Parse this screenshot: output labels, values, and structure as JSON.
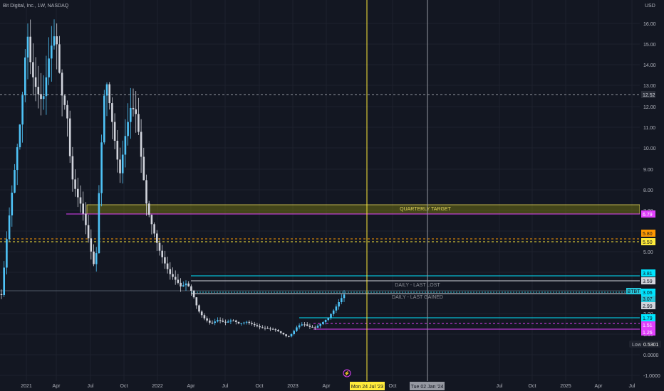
{
  "header": {
    "symbol_title": "Bit Digital, Inc., 1W, NASDAQ"
  },
  "axis": {
    "currency": "USD",
    "y_ticks": [
      "16.00",
      "15.00",
      "14.00",
      "13.00",
      "12.00",
      "11.00",
      "10.00",
      "9.00",
      "8.00",
      "7.00",
      "6.00",
      "5.00",
      "4.00",
      "2.00",
      "1.00",
      "0.0000",
      "-1.0000"
    ],
    "x_ticks": [
      "2021",
      "Apr",
      "Jul",
      "Oct",
      "2022",
      "Apr",
      "Jul",
      "Oct",
      "2023",
      "Apr",
      "Oct",
      "Jul",
      "Oct",
      "2025",
      "Apr",
      "Jul"
    ]
  },
  "price_labels": [
    {
      "text": "12.52",
      "bg": "#2a2e39",
      "fg": "#d1d4dc"
    },
    {
      "text": "6.79",
      "bg": "#e040fb",
      "fg": "#ffffff"
    },
    {
      "text": "5.80",
      "bg": "#ff9800",
      "fg": "#131722"
    },
    {
      "text": "5.50",
      "bg": "#ffeb3b",
      "fg": "#131722"
    },
    {
      "text": "3.81",
      "bg": "#00e5ff",
      "fg": "#131722"
    },
    {
      "text": "3.59",
      "bg": "#d1d4dc",
      "fg": "#131722"
    },
    {
      "text": "3.07",
      "bg": "#26c6da",
      "fg": "#131722"
    },
    {
      "text": "3.06",
      "bg": "#00e5ff",
      "fg": "#131722"
    },
    {
      "text": "2.99",
      "bg": "#d1d4dc",
      "fg": "#131722"
    },
    {
      "text": "1.79",
      "bg": "#00e5ff",
      "fg": "#131722"
    },
    {
      "text": "1.51",
      "bg": "#e040fb",
      "fg": "#ffffff"
    },
    {
      "text": "1.26",
      "bg": "#e040fb",
      "fg": "#ffffff"
    }
  ],
  "ticker_tag": "BTBT",
  "low_label": "Low",
  "low_value": "0.5301",
  "annotations": {
    "quarterly_target": "QUARTERLY TARGET",
    "daily_last_lost": "DAILY - LAST LOST",
    "daily_last_gained": "DAILY - LAST GAINED"
  },
  "crosshair_labels": {
    "yellow": "Mon 24 Jul '23",
    "white": "Tue 02 Jan '24"
  },
  "colors": {
    "background": "#131722",
    "candle_up": "#4fc3f7",
    "candle_down": "#d1d4dc",
    "target_zone": "#7a7a00",
    "yellow_line": "#ffeb3b",
    "cyan_line": "#00e5ff",
    "magenta_line": "#e040fb",
    "orange_line": "#ff9800"
  },
  "chart_data": {
    "type": "candlestick",
    "timeframe": "1W",
    "x": [
      "2021",
      "2021-04",
      "2021-07",
      "2021-10",
      "2022",
      "2022-04",
      "2022-07",
      "2022-10",
      "2023",
      "2023-04",
      "2023-07"
    ],
    "close": [
      3.0,
      12.0,
      8.0,
      11.0,
      12.0,
      5.0,
      1.6,
      1.3,
      1.1,
      1.8,
      3.07
    ],
    "horizontal_levels": [
      12.52,
      6.79,
      5.8,
      5.5,
      3.81,
      3.59,
      3.06,
      2.99,
      1.79,
      1.51,
      1.26
    ],
    "zones": [
      {
        "label": "QUARTERLY TARGET",
        "from": 6.79,
        "to": 7.2
      }
    ],
    "vertical_markers": [
      "Mon 24 Jul '23",
      "Tue 02 Jan '24"
    ],
    "last_price": 3.07,
    "low": 0.5301,
    "ylim": [
      -1.0,
      17.0
    ]
  }
}
